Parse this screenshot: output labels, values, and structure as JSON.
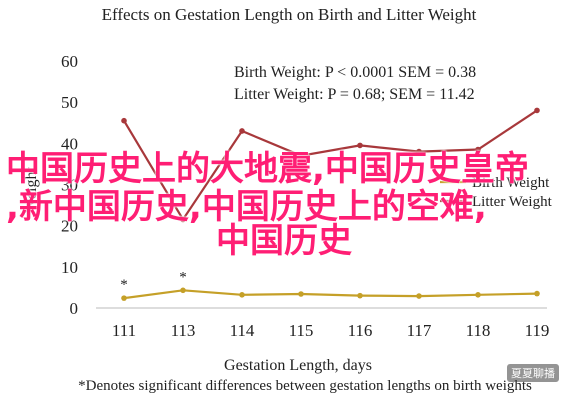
{
  "chart_data": {
    "type": "line",
    "title": "Effects on Gestation Length on Birth and Litter Weight",
    "xlabel": "Gestation Length, days",
    "ylabel": "Weight",
    "categories": [
      "111",
      "113",
      "114",
      "115",
      "116",
      "117",
      "118",
      "119"
    ],
    "ylim": [
      0,
      60
    ],
    "yticks": [
      0,
      10,
      20,
      30,
      40,
      50,
      60
    ],
    "grid": false,
    "series": [
      {
        "name": "Birth Weight",
        "color": "#c5a028",
        "values": [
          2.4,
          4.3,
          3.2,
          3.4,
          3.0,
          2.9,
          3.2,
          3.5
        ]
      },
      {
        "name": "Litter Weight",
        "color": "#a8383b",
        "values": [
          45.5,
          21.5,
          43.0,
          37.0,
          39.5,
          38.0,
          38.5,
          48.0
        ]
      }
    ],
    "stats_annotations": [
      "Birth Weight: P < 0.0001 SEM = 0.38",
      "Litter Weight: P = 0.68; SEM = 11.42"
    ],
    "significance_markers": [
      {
        "category": "111",
        "label": "*"
      },
      {
        "category": "113",
        "label": "*"
      }
    ],
    "footnote": "*Denotes significant differences between gestation lengths on birth weights"
  },
  "overlay": {
    "line1": "中国历史上的大地震,中国历史皇帝",
    "line2": ",新中国历史,中国历史上的空难,",
    "line3": "中国历史"
  },
  "watermark": "夏夏聊播"
}
